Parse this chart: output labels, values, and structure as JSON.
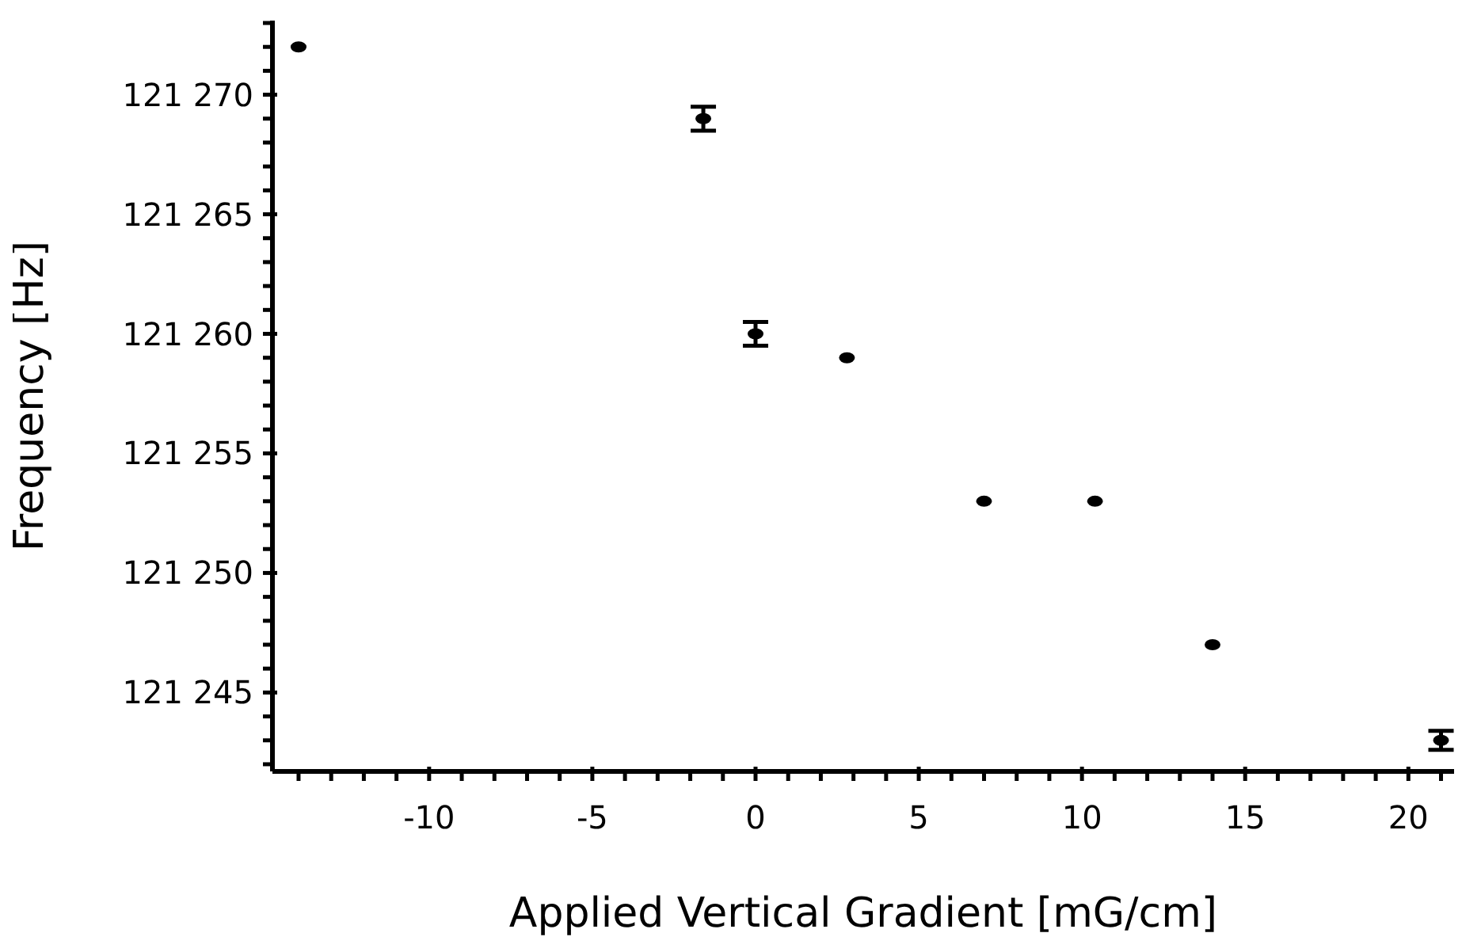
{
  "chart_data": {
    "type": "scatter",
    "xlabel": "Applied Vertical Gradient [mG/cm]",
    "ylabel": "Frequency [Hz]",
    "x": [
      -14,
      -1.6,
      0,
      2.8,
      7,
      10.4,
      14,
      21
    ],
    "values": [
      121272,
      121269,
      121260,
      121259,
      121253,
      121253,
      121247,
      121243
    ],
    "errors": [
      null,
      0.5,
      0.5,
      null,
      null,
      null,
      null,
      0.4
    ],
    "color": "#000000",
    "marker": "circle",
    "grid": false,
    "legend": false,
    "xlim": [
      -14.8,
      21.4
    ],
    "xticks": [
      {
        "value": -14,
        "label": null
      },
      {
        "value": -13,
        "label": null
      },
      {
        "value": -12,
        "label": null
      },
      {
        "value": -11,
        "label": null
      },
      -10,
      {
        "value": -9,
        "label": null
      },
      {
        "value": -8,
        "label": null
      },
      {
        "value": -7,
        "label": null
      },
      {
        "value": -6,
        "label": null
      },
      -5,
      {
        "value": -4,
        "label": null
      },
      {
        "value": -3,
        "label": null
      },
      {
        "value": -2,
        "label": null
      },
      {
        "value": -1,
        "label": null
      },
      0,
      {
        "value": 1,
        "label": null
      },
      {
        "value": 2,
        "label": null
      },
      {
        "value": 3,
        "label": null
      },
      {
        "value": 4,
        "label": null
      },
      5,
      {
        "value": 6,
        "label": null
      },
      {
        "value": 7,
        "label": null
      },
      {
        "value": 8,
        "label": null
      },
      {
        "value": 9,
        "label": null
      },
      10,
      {
        "value": 11,
        "label": null
      },
      {
        "value": 12,
        "label": null
      },
      {
        "value": 13,
        "label": null
      },
      {
        "value": 14,
        "label": null
      },
      15,
      {
        "value": 16,
        "label": null
      },
      {
        "value": 17,
        "label": null
      },
      {
        "value": 18,
        "label": null
      },
      {
        "value": 19,
        "label": null
      },
      20,
      {
        "value": 21,
        "label": null
      }
    ],
    "ylim": [
      121241.7,
      121273.1
    ],
    "yticks": [
      {
        "value": 121242,
        "label": null
      },
      {
        "value": 121243,
        "label": null
      },
      {
        "value": 121244,
        "label": null
      },
      {
        "value": 121245,
        "label": "121 245"
      },
      {
        "value": 121246,
        "label": null
      },
      {
        "value": 121247,
        "label": null
      },
      {
        "value": 121248,
        "label": null
      },
      {
        "value": 121249,
        "label": null
      },
      {
        "value": 121250,
        "label": "121 250"
      },
      {
        "value": 121251,
        "label": null
      },
      {
        "value": 121252,
        "label": null
      },
      {
        "value": 121253,
        "label": null
      },
      {
        "value": 121254,
        "label": null
      },
      {
        "value": 121255,
        "label": "121 255"
      },
      {
        "value": 121256,
        "label": null
      },
      {
        "value": 121257,
        "label": null
      },
      {
        "value": 121258,
        "label": null
      },
      {
        "value": 121259,
        "label": null
      },
      {
        "value": 121260,
        "label": "121 260"
      },
      {
        "value": 121261,
        "label": null
      },
      {
        "value": 121262,
        "label": null
      },
      {
        "value": 121263,
        "label": null
      },
      {
        "value": 121264,
        "label": null
      },
      {
        "value": 121265,
        "label": "121 265"
      },
      {
        "value": 121266,
        "label": null
      },
      {
        "value": 121267,
        "label": null
      },
      {
        "value": 121268,
        "label": null
      },
      {
        "value": 121269,
        "label": null
      },
      {
        "value": 121270,
        "label": "121 270"
      },
      {
        "value": 121271,
        "label": null
      },
      {
        "value": 121272,
        "label": null
      },
      {
        "value": 121273,
        "label": null
      }
    ]
  }
}
